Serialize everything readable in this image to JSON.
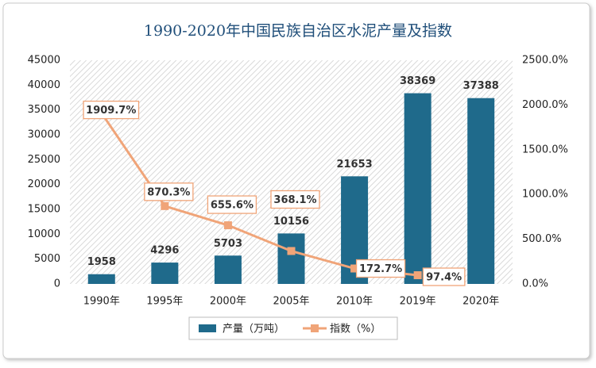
{
  "chart_data": {
    "type": "bar-line",
    "title": "1990-2020年中国民族自治区水泥产量及指数",
    "categories": [
      "1990年",
      "1995年",
      "2000年",
      "2005年",
      "2010年",
      "2019年",
      "2020年"
    ],
    "series": [
      {
        "name": "产量（万吨）",
        "color": "#1f6a8b",
        "type": "bar",
        "values": [
          1958,
          4296,
          5703,
          10156,
          21653,
          38369,
          37388
        ]
      },
      {
        "name": "指数（%）",
        "color": "#f0a478",
        "type": "line",
        "axis": "y2",
        "values": [
          1909.7,
          870.3,
          655.6,
          368.1,
          172.7,
          97.4,
          null
        ],
        "value_labels": [
          "1909.7%",
          "870.3%",
          "655.6%",
          "368.1%",
          "172.7%",
          "97.4%",
          null
        ]
      }
    ],
    "ylim": [
      0,
      45000
    ],
    "yticks": [
      0,
      5000,
      10000,
      15000,
      20000,
      25000,
      30000,
      35000,
      40000,
      45000
    ],
    "y2lim": [
      0,
      2500
    ],
    "y2ticks": [
      {
        "value": 0,
        "label": "0.0%"
      },
      {
        "value": 500,
        "label": "500.0%"
      },
      {
        "value": 1000,
        "label": "1000.0%"
      },
      {
        "value": 1500,
        "label": "1500.0%"
      },
      {
        "value": 2000,
        "label": "2000.0%"
      },
      {
        "value": 2500,
        "label": "2500.0%"
      }
    ],
    "legend": "bottom"
  }
}
